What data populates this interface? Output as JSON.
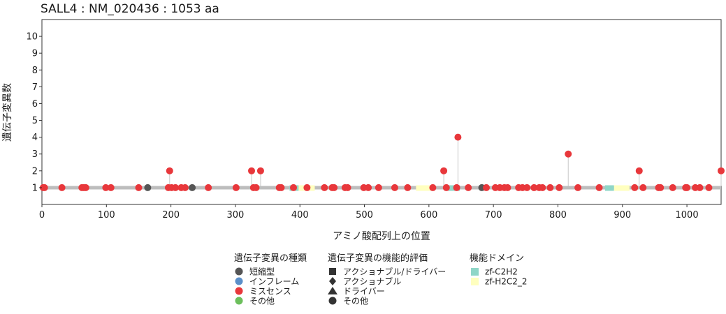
{
  "chart_data": {
    "type": "lollipop",
    "title": "SALL4 : NM_020436 : 1053 aa",
    "xlabel": "アミノ酸配列上の位置",
    "ylabel": "遺伝子変異数",
    "xlim": [
      0,
      1053
    ],
    "ylim": [
      0,
      11
    ],
    "x_ticks": [
      0,
      100,
      200,
      300,
      400,
      500,
      600,
      700,
      800,
      900,
      1000
    ],
    "y_ticks": [
      1,
      2,
      3,
      4,
      5,
      6,
      7,
      8,
      9,
      10
    ],
    "protein_length": 1053,
    "colors": {
      "truncating": "#555555",
      "inframe": "#5b8fc9",
      "missense": "#e8373b",
      "other": "#6cbf5c",
      "backbone": "#bdbdbd",
      "stem": "#c8c8c8",
      "zf_C2H2": "#8fd6c7",
      "zf_H2C2_2": "#ffffbf"
    },
    "mutations": [
      {
        "x": 2,
        "y": 1,
        "type": "missense"
      },
      {
        "x": 4,
        "y": 1,
        "type": "missense"
      },
      {
        "x": 31,
        "y": 1,
        "type": "missense"
      },
      {
        "x": 62,
        "y": 1,
        "type": "missense"
      },
      {
        "x": 65,
        "y": 1,
        "type": "missense"
      },
      {
        "x": 68,
        "y": 1,
        "type": "missense"
      },
      {
        "x": 99,
        "y": 1,
        "type": "missense"
      },
      {
        "x": 107,
        "y": 1,
        "type": "missense"
      },
      {
        "x": 150,
        "y": 1,
        "type": "missense"
      },
      {
        "x": 164,
        "y": 1,
        "type": "truncating"
      },
      {
        "x": 196,
        "y": 1,
        "type": "missense"
      },
      {
        "x": 198,
        "y": 2,
        "type": "missense"
      },
      {
        "x": 201,
        "y": 1,
        "type": "missense"
      },
      {
        "x": 207,
        "y": 1,
        "type": "missense"
      },
      {
        "x": 216,
        "y": 1,
        "type": "missense"
      },
      {
        "x": 222,
        "y": 1,
        "type": "missense"
      },
      {
        "x": 233,
        "y": 1,
        "type": "truncating"
      },
      {
        "x": 258,
        "y": 1,
        "type": "missense"
      },
      {
        "x": 301,
        "y": 1,
        "type": "missense"
      },
      {
        "x": 325,
        "y": 2,
        "type": "missense"
      },
      {
        "x": 328,
        "y": 1,
        "type": "missense"
      },
      {
        "x": 332,
        "y": 1,
        "type": "missense"
      },
      {
        "x": 339,
        "y": 2,
        "type": "missense"
      },
      {
        "x": 368,
        "y": 1,
        "type": "missense"
      },
      {
        "x": 371,
        "y": 1,
        "type": "missense"
      },
      {
        "x": 390,
        "y": 1,
        "type": "missense"
      },
      {
        "x": 411,
        "y": 1,
        "type": "missense"
      },
      {
        "x": 438,
        "y": 1,
        "type": "missense"
      },
      {
        "x": 450,
        "y": 1,
        "type": "missense"
      },
      {
        "x": 453,
        "y": 1,
        "type": "missense"
      },
      {
        "x": 470,
        "y": 1,
        "type": "missense"
      },
      {
        "x": 474,
        "y": 1,
        "type": "missense"
      },
      {
        "x": 499,
        "y": 1,
        "type": "missense"
      },
      {
        "x": 506,
        "y": 1,
        "type": "missense"
      },
      {
        "x": 522,
        "y": 1,
        "type": "missense"
      },
      {
        "x": 547,
        "y": 1,
        "type": "missense"
      },
      {
        "x": 567,
        "y": 1,
        "type": "missense"
      },
      {
        "x": 606,
        "y": 1,
        "type": "missense"
      },
      {
        "x": 623,
        "y": 2,
        "type": "missense"
      },
      {
        "x": 627,
        "y": 1,
        "type": "missense"
      },
      {
        "x": 643,
        "y": 1,
        "type": "missense"
      },
      {
        "x": 645,
        "y": 4,
        "type": "missense"
      },
      {
        "x": 661,
        "y": 1,
        "type": "missense"
      },
      {
        "x": 682,
        "y": 1,
        "type": "truncating"
      },
      {
        "x": 689,
        "y": 1,
        "type": "missense"
      },
      {
        "x": 703,
        "y": 1,
        "type": "missense"
      },
      {
        "x": 710,
        "y": 1,
        "type": "missense"
      },
      {
        "x": 717,
        "y": 1,
        "type": "missense"
      },
      {
        "x": 722,
        "y": 1,
        "type": "missense"
      },
      {
        "x": 739,
        "y": 1,
        "type": "missense"
      },
      {
        "x": 745,
        "y": 1,
        "type": "missense"
      },
      {
        "x": 752,
        "y": 1,
        "type": "missense"
      },
      {
        "x": 763,
        "y": 1,
        "type": "missense"
      },
      {
        "x": 771,
        "y": 1,
        "type": "missense"
      },
      {
        "x": 776,
        "y": 1,
        "type": "missense"
      },
      {
        "x": 788,
        "y": 1,
        "type": "missense"
      },
      {
        "x": 802,
        "y": 1,
        "type": "missense"
      },
      {
        "x": 816,
        "y": 3,
        "type": "missense"
      },
      {
        "x": 831,
        "y": 1,
        "type": "missense"
      },
      {
        "x": 864,
        "y": 1,
        "type": "missense"
      },
      {
        "x": 919,
        "y": 1,
        "type": "missense"
      },
      {
        "x": 926,
        "y": 2,
        "type": "missense"
      },
      {
        "x": 932,
        "y": 1,
        "type": "missense"
      },
      {
        "x": 956,
        "y": 1,
        "type": "missense"
      },
      {
        "x": 959,
        "y": 1,
        "type": "missense"
      },
      {
        "x": 978,
        "y": 1,
        "type": "missense"
      },
      {
        "x": 998,
        "y": 1,
        "type": "missense"
      },
      {
        "x": 1000,
        "y": 1,
        "type": "missense"
      },
      {
        "x": 1013,
        "y": 1,
        "type": "missense"
      },
      {
        "x": 1020,
        "y": 1,
        "type": "missense"
      },
      {
        "x": 1034,
        "y": 1,
        "type": "missense"
      },
      {
        "x": 1053,
        "y": 2,
        "type": "missense"
      }
    ],
    "domains": [
      {
        "start": 384,
        "end": 398,
        "name": "zf-C2H2"
      },
      {
        "start": 398,
        "end": 423,
        "name": "zf-H2C2_2"
      },
      {
        "start": 580,
        "end": 605,
        "name": "zf-H2C2_2"
      },
      {
        "start": 626,
        "end": 648,
        "name": "zf-C2H2"
      },
      {
        "start": 873,
        "end": 887,
        "name": "zf-C2H2"
      },
      {
        "start": 887,
        "end": 911,
        "name": "zf-H2C2_2"
      }
    ],
    "legend": {
      "type_title": "遺伝子変異の種類",
      "type_items": [
        {
          "label": "短縮型",
          "color_key": "truncating"
        },
        {
          "label": "インフレーム",
          "color_key": "inframe"
        },
        {
          "label": "ミスセンス",
          "color_key": "missense"
        },
        {
          "label": "その他",
          "color_key": "other"
        }
      ],
      "eval_title": "遺伝子変異の機能的評価",
      "eval_items": [
        {
          "label": "アクショナブル/ドライバー",
          "shape": "square"
        },
        {
          "label": "アクショナブル",
          "shape": "diamond"
        },
        {
          "label": "ドライバー",
          "shape": "triangle"
        },
        {
          "label": "その他",
          "shape": "circle"
        }
      ],
      "domain_title": "機能ドメイン",
      "domain_items": [
        {
          "label": "zf-C2H2",
          "color_key": "zf_C2H2"
        },
        {
          "label": "zf-H2C2_2",
          "color_key": "zf_H2C2_2"
        }
      ],
      "placement": "bottom"
    }
  }
}
